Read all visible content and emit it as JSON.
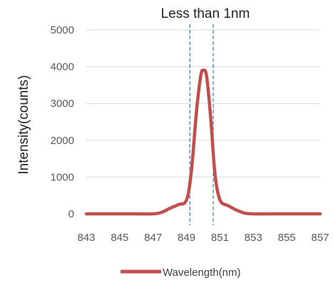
{
  "chart_data": {
    "type": "line",
    "title": "",
    "xlabel": "",
    "ylabel": "Intensity(counts)",
    "xlim": [
      843,
      857
    ],
    "ylim": [
      0,
      5000
    ],
    "x_ticks": [
      843,
      845,
      847,
      849,
      851,
      853,
      855,
      857
    ],
    "y_ticks": [
      0,
      1000,
      2000,
      3000,
      4000,
      5000
    ],
    "grid": "horizontal",
    "legend_position": "bottom",
    "annotation": {
      "text": "Less than 1nm",
      "marker_x": [
        849.2,
        850.6
      ]
    },
    "series": [
      {
        "name": "Wavelength(nm)",
        "color": "#c0504d",
        "points": [
          [
            843,
            0
          ],
          [
            845,
            0
          ],
          [
            846,
            0
          ],
          [
            847,
            0
          ],
          [
            847.5,
            40
          ],
          [
            848,
            150
          ],
          [
            848.5,
            250
          ],
          [
            849,
            380
          ],
          [
            849.3,
            1200
          ],
          [
            849.6,
            2800
          ],
          [
            849.85,
            3750
          ],
          [
            850.0,
            3900
          ],
          [
            850.2,
            3750
          ],
          [
            850.45,
            2600
          ],
          [
            850.7,
            1100
          ],
          [
            851.0,
            380
          ],
          [
            851.5,
            220
          ],
          [
            852,
            100
          ],
          [
            852.5,
            20
          ],
          [
            853,
            0
          ],
          [
            855,
            0
          ],
          [
            857,
            0
          ]
        ]
      }
    ]
  }
}
